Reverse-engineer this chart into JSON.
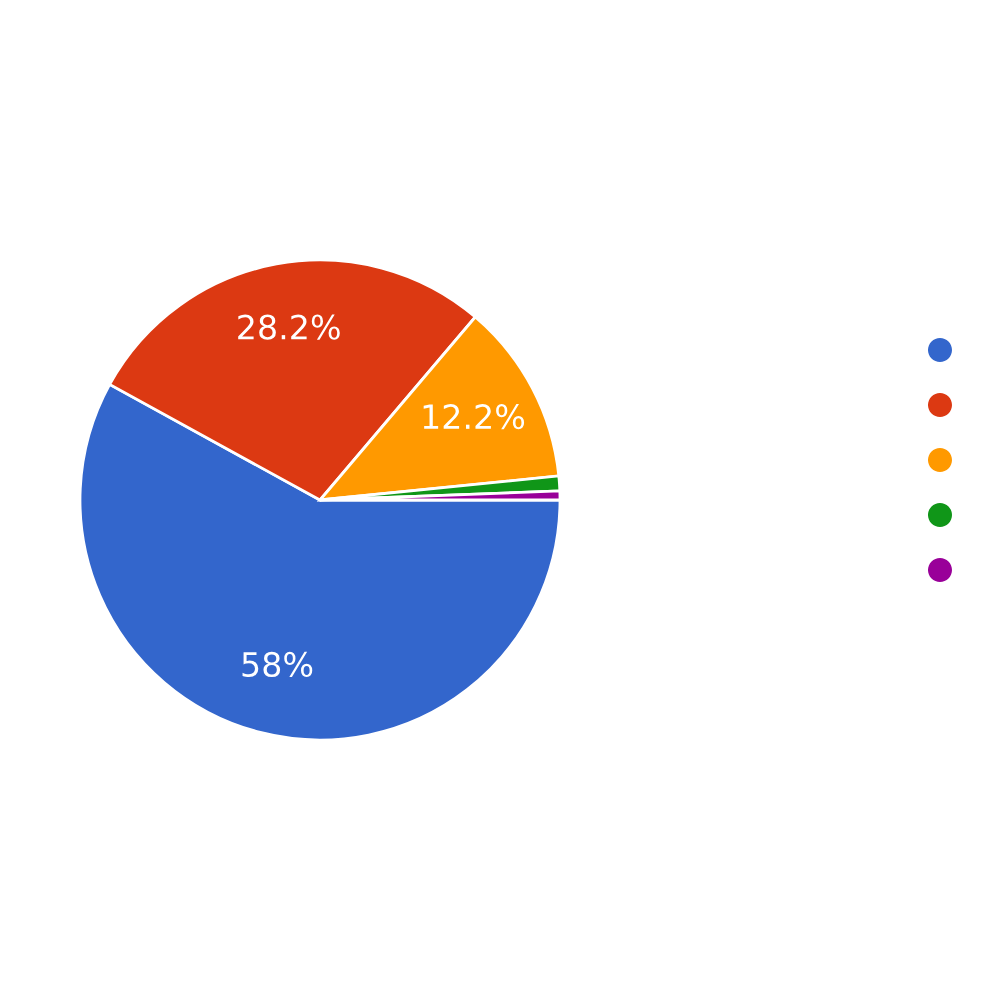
{
  "chart_data": {
    "type": "pie",
    "categories": [
      null,
      null,
      null,
      null,
      null
    ],
    "values": [
      58,
      28.2,
      12.2,
      1.0,
      0.6
    ],
    "colors": [
      "#3366cc",
      "#dc3912",
      "#ff9900",
      "#109618",
      "#990099"
    ],
    "value_labels": [
      "58%",
      "28.2%",
      "12.2%",
      null,
      null
    ]
  }
}
